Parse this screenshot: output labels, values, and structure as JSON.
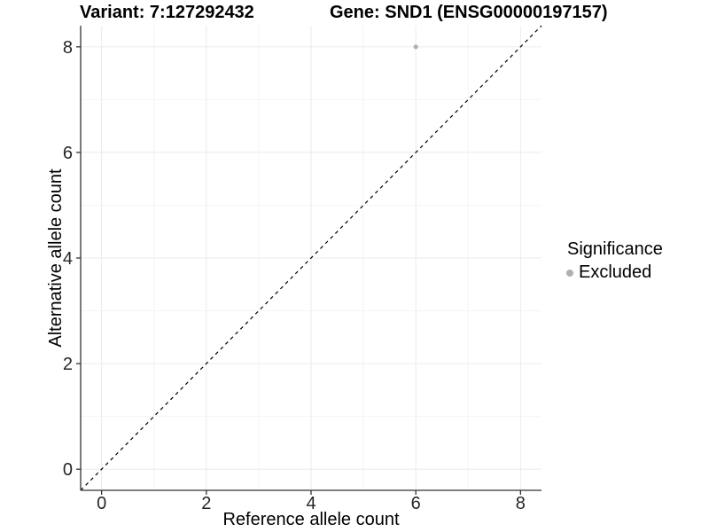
{
  "header": {
    "variant_title": "Variant: 7:127292432",
    "gene_title": "Gene: SND1 (ENSG00000197157)"
  },
  "chart_data": {
    "type": "scatter",
    "xlabel": "Reference allele count",
    "ylabel": "Alternative allele count",
    "xlim": [
      -0.4,
      8.4
    ],
    "ylim": [
      -0.4,
      8.4
    ],
    "x_ticks": [
      0,
      2,
      4,
      6,
      8
    ],
    "y_ticks": [
      0,
      2,
      4,
      6,
      8
    ],
    "x_minor_ticks": [
      1,
      3,
      5,
      7
    ],
    "y_minor_ticks": [
      1,
      3,
      5,
      7
    ],
    "grid": "major+minor",
    "series": [
      {
        "name": "Excluded",
        "color": "#b0b0b0",
        "points": [
          {
            "x": 6,
            "y": 8
          }
        ]
      }
    ],
    "reference_line": {
      "type": "identity",
      "style": "dashed",
      "color": "#000000",
      "from": [
        -0.4,
        -0.4
      ],
      "to": [
        8.4,
        8.4
      ]
    },
    "legend": {
      "title": "Significance",
      "position": "right",
      "items": [
        {
          "label": "Excluded",
          "color": "#b0b0b0"
        }
      ]
    }
  },
  "colors": {
    "axis_line": "#333333",
    "tick_mark": "#333333",
    "tick_label": "#262626",
    "grid_major": "#ebebeb",
    "grid_minor": "#f5f5f5",
    "background": "#ffffff"
  }
}
